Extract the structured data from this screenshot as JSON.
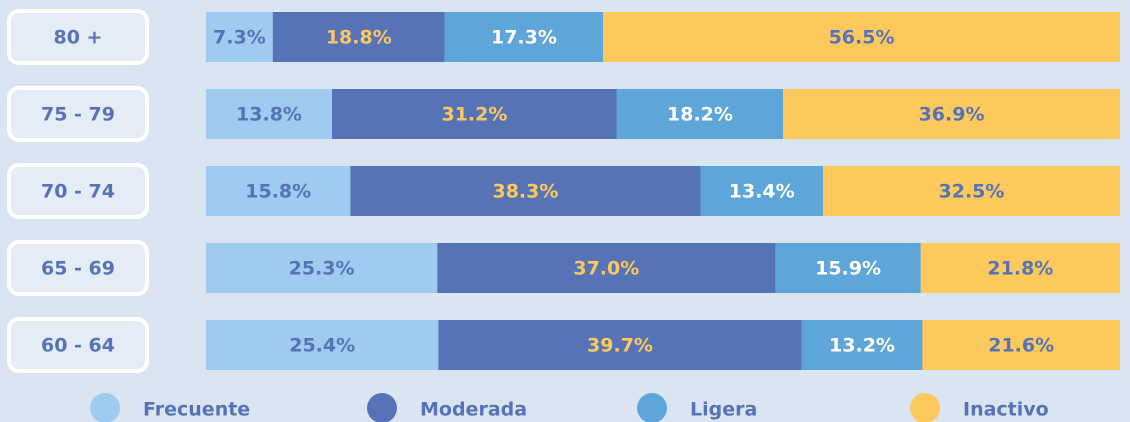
{
  "chart_data": {
    "type": "stacked_bar_horizontal",
    "categories": [
      "80 +",
      "75 - 79",
      "70 - 74",
      "65 - 69",
      "60 - 64"
    ],
    "series": [
      {
        "name": "Frecuente",
        "color": "#9ecbef",
        "label_color": "#5673b8",
        "values": [
          7.3,
          13.8,
          15.8,
          25.3,
          25.4
        ],
        "value_labels": [
          "7.3%",
          "13.8%",
          "15.8%",
          "25.3%",
          "25.4%"
        ]
      },
      {
        "name": "Moderada",
        "color": "#5673b8",
        "label_color": "#fdc95c",
        "values": [
          18.8,
          31.2,
          38.3,
          37.0,
          39.7
        ],
        "value_labels": [
          "18.8%",
          "31.2%",
          "38.3%",
          "37.0%",
          "39.7%"
        ]
      },
      {
        "name": "Ligera",
        "color": "#5ea5d9",
        "label_color": "#ffffff",
        "values": [
          17.3,
          18.2,
          13.4,
          15.9,
          13.2
        ],
        "value_labels": [
          "17.3%",
          "18.2%",
          "13.4%",
          "15.9%",
          "13.2%"
        ]
      },
      {
        "name": "Inactivo",
        "color": "#fdc95c",
        "label_color": "#5673b8",
        "values": [
          56.5,
          36.9,
          32.5,
          21.8,
          21.6
        ],
        "value_labels": [
          "56.5%",
          "36.9%",
          "32.5%",
          "21.8%",
          "21.6%"
        ]
      }
    ],
    "legend": "bottom"
  }
}
